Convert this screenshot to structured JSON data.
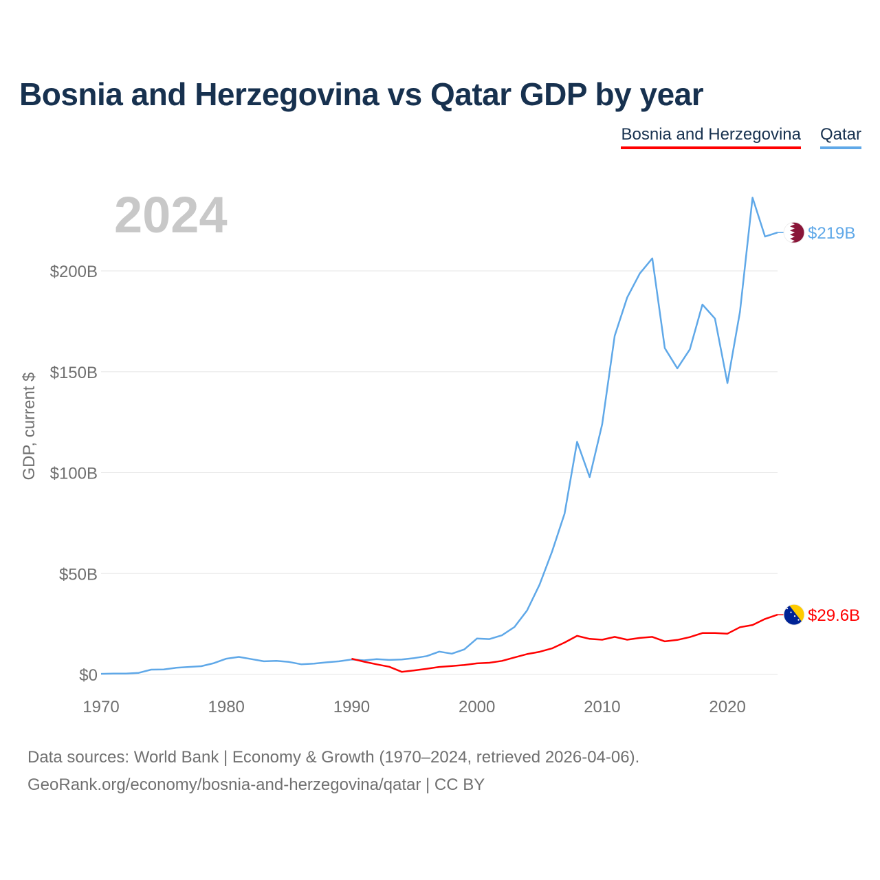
{
  "chart_data": {
    "type": "line",
    "title": "Bosnia and Herzegovina vs Qatar GDP by year",
    "ylabel": "GDP, current $",
    "xlabel": "",
    "year_label": "2024",
    "ylim": [
      0,
      235
    ],
    "xlim": [
      1970,
      2024
    ],
    "y_ticks": [
      {
        "value": 0,
        "label": "$0"
      },
      {
        "value": 50,
        "label": "$50B"
      },
      {
        "value": 100,
        "label": "$100B"
      },
      {
        "value": 150,
        "label": "$150B"
      },
      {
        "value": 200,
        "label": "$200B"
      }
    ],
    "x_ticks": [
      {
        "value": 1970,
        "label": "1970"
      },
      {
        "value": 1980,
        "label": "1980"
      },
      {
        "value": 1990,
        "label": "1990"
      },
      {
        "value": 2000,
        "label": "2000"
      },
      {
        "value": 2010,
        "label": "2010"
      },
      {
        "value": 2020,
        "label": "2020"
      }
    ],
    "series": [
      {
        "name": "Bosnia and Herzegovina",
        "color": "#ff0000",
        "end_label": "$29.6B",
        "flag": "bosnia-flag",
        "start_year": 1990,
        "values": [
          7.8,
          6.3,
          5.0,
          3.8,
          1.3,
          2.0,
          2.8,
          3.7,
          4.2,
          4.7,
          5.5,
          5.8,
          6.7,
          8.4,
          10.1,
          11.2,
          12.9,
          15.8,
          19.1,
          17.6,
          17.2,
          18.6,
          17.2,
          18.1,
          18.6,
          16.4,
          17.1,
          18.5,
          20.5,
          20.5,
          20.2,
          23.4,
          24.5,
          27.5,
          29.6
        ]
      },
      {
        "name": "Qatar",
        "color": "#5fa8e8",
        "end_label": "$219B",
        "flag": "qatar-flag",
        "start_year": 1970,
        "values": [
          0.3,
          0.4,
          0.4,
          0.8,
          2.4,
          2.5,
          3.3,
          3.7,
          4.1,
          5.6,
          7.8,
          8.7,
          7.6,
          6.5,
          6.7,
          6.2,
          5.0,
          5.4,
          6.0,
          6.5,
          7.4,
          7.0,
          7.6,
          7.2,
          7.4,
          8.1,
          9.1,
          11.3,
          10.3,
          12.4,
          17.8,
          17.5,
          19.4,
          23.5,
          31.7,
          44.5,
          60.9,
          79.7,
          115.3,
          97.8,
          124.0,
          167.8,
          186.8,
          198.7,
          206.2,
          161.7,
          151.7,
          161.1,
          183.3,
          176.4,
          144.4,
          179.7,
          236.3,
          217.0,
          219.0
        ]
      }
    ]
  },
  "footer": {
    "line1": "Data sources: World Bank | Economy & Growth (1970–2024, retrieved 2026-04-06).",
    "line2": "GeoRank.org/economy/bosnia-and-herzegovina/qatar | CC BY"
  }
}
